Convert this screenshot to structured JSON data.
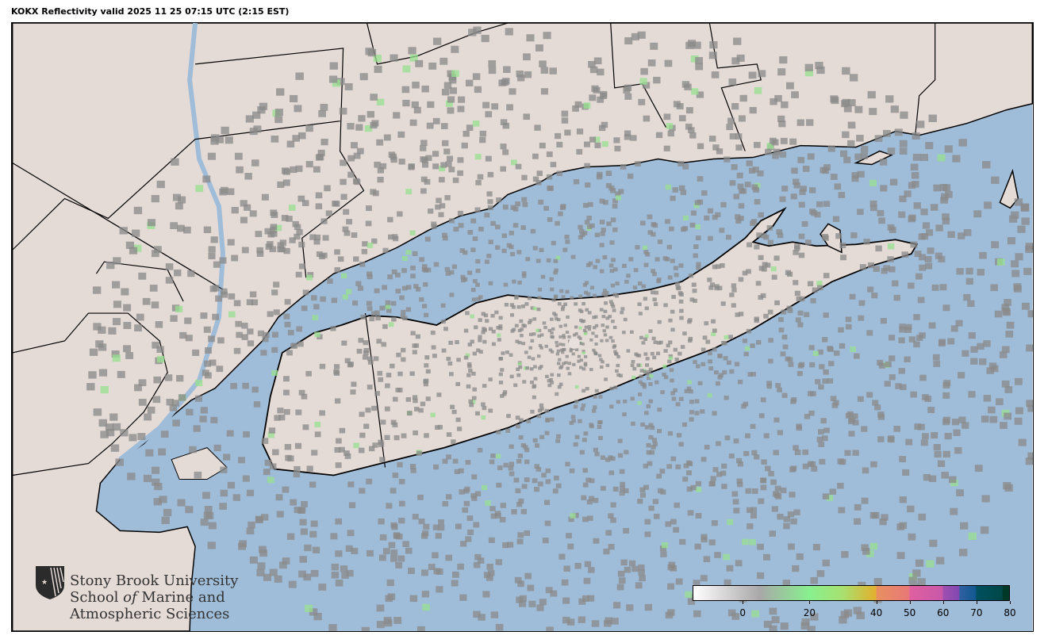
{
  "title": "KOKX Reflectivity valid 2025 11 25 07:15 UTC (2:15 EST)",
  "map": {
    "radar_site": "KOKX",
    "ocean_color": "#9fbcd8",
    "land_color": "#e4dad6",
    "echo_color": "#8a8a8a"
  },
  "logo": {
    "line1": "Stony Brook University",
    "line2_a": "School ",
    "line2_b": "of",
    "line2_c": " Marine and",
    "line3": "Atmospheric Sciences"
  },
  "colorbar": {
    "range": [
      -15,
      80
    ],
    "ticks": [
      0,
      20,
      40,
      50,
      60,
      70,
      80
    ],
    "stops": [
      {
        "v": -15,
        "c": "#ffffff"
      },
      {
        "v": 5,
        "c": "#a8a8a8"
      },
      {
        "v": 20,
        "c": "#88f08f"
      },
      {
        "v": 30,
        "c": "#a8e070"
      },
      {
        "v": 38,
        "c": "#d8b838"
      },
      {
        "v": 40,
        "c": "#e4b030"
      },
      {
        "v": 40.1,
        "c": "#e89060"
      },
      {
        "v": 50,
        "c": "#e87878"
      },
      {
        "v": 50.1,
        "c": "#e060a0"
      },
      {
        "v": 60,
        "c": "#c858a8"
      },
      {
        "v": 60.1,
        "c": "#a050b0"
      },
      {
        "v": 65,
        "c": "#8048b0"
      },
      {
        "v": 65.1,
        "c": "#3060a0"
      },
      {
        "v": 70,
        "c": "#105890"
      },
      {
        "v": 70.1,
        "c": "#005060"
      },
      {
        "v": 78,
        "c": "#004848"
      },
      {
        "v": 78.1,
        "c": "#003828"
      },
      {
        "v": 80,
        "c": "#003828"
      }
    ]
  }
}
